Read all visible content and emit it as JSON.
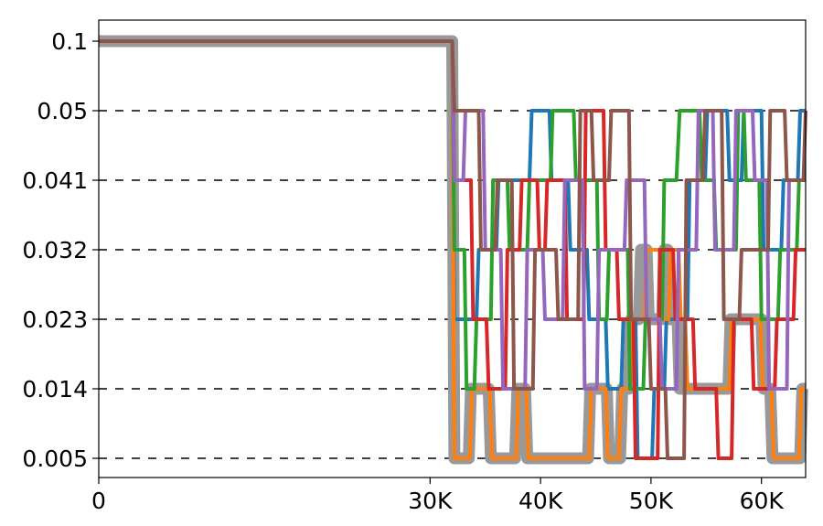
{
  "chart_data": {
    "type": "line",
    "title": "",
    "xlabel": "",
    "ylabel": "",
    "xlim": [
      0,
      64000
    ],
    "y_levels": [
      0.1,
      0.05,
      0.041,
      0.032,
      0.023,
      0.014,
      0.005
    ],
    "y_tick_labels": [
      "0.1",
      "0.05",
      "0.041",
      "0.032",
      "0.023",
      "0.014",
      "0.005"
    ],
    "x_ticks": [
      0,
      30000,
      40000,
      50000,
      60000
    ],
    "x_tick_labels": [
      "0",
      "30K",
      "40K",
      "50K",
      "60K"
    ],
    "grid": "dashed horizontal lines at levels below 0.1",
    "legend": "none",
    "series": [
      {
        "color": "#999999",
        "x": [
          0,
          32000,
          32200,
          32700,
          33500,
          33700,
          35300,
          35500,
          37700,
          37900,
          38600,
          38800,
          44300,
          44500,
          46000,
          46200,
          47200,
          47400,
          48000,
          48200,
          48900,
          49100,
          49600,
          49800,
          51000,
          51200,
          51500,
          51700,
          52400,
          52600,
          53000,
          53200,
          56100,
          56300,
          57000,
          57200,
          58600,
          58800,
          60000,
          60200,
          60800,
          61000,
          63500,
          63700,
          64000
        ],
        "y": [
          0.1,
          0.1,
          0.005,
          0.005,
          0.005,
          0.014,
          0.014,
          0.005,
          0.005,
          0.014,
          0.014,
          0.005,
          0.005,
          0.014,
          0.014,
          0.005,
          0.005,
          0.014,
          0.014,
          0.023,
          0.023,
          0.032,
          0.032,
          0.023,
          0.023,
          0.032,
          0.032,
          0.023,
          0.023,
          0.014,
          0.014,
          0.014,
          0.014,
          0.014,
          0.014,
          0.023,
          0.023,
          0.023,
          0.023,
          0.014,
          0.014,
          0.005,
          0.005,
          0.014,
          0.014
        ]
      },
      {
        "color": "#1f77b4",
        "x": [
          0,
          32000,
          32200,
          34200,
          34400,
          36000,
          36200,
          39000,
          39200,
          40800,
          41000,
          42500,
          42700,
          44200,
          44400,
          45900,
          46100,
          47300,
          47500,
          48600,
          48800,
          50100,
          50300,
          51200,
          51400,
          53300,
          53500,
          54900,
          55100,
          56900,
          57100,
          58200,
          58400,
          60000,
          60200,
          61800,
          62000,
          63300,
          63500,
          64000
        ],
        "y": [
          0.1,
          0.1,
          0.023,
          0.023,
          0.032,
          0.032,
          0.041,
          0.041,
          0.05,
          0.05,
          0.041,
          0.041,
          0.032,
          0.032,
          0.023,
          0.023,
          0.014,
          0.014,
          0.023,
          0.023,
          0.005,
          0.005,
          0.014,
          0.014,
          0.023,
          0.023,
          0.041,
          0.041,
          0.05,
          0.05,
          0.041,
          0.041,
          0.05,
          0.05,
          0.032,
          0.032,
          0.041,
          0.041,
          0.05,
          0.05
        ]
      },
      {
        "color": "#ff7f0e",
        "x": [
          0,
          32000,
          32200,
          33600,
          33800,
          35400,
          35600,
          37800,
          38000,
          38700,
          38900,
          44400,
          44600,
          45900,
          46100,
          47100,
          47300,
          48100,
          48300,
          49400,
          49600,
          50800,
          51000,
          51600,
          51800,
          52500,
          52700,
          53100,
          53300,
          56200,
          56400,
          57100,
          57300,
          58500,
          58700,
          59900,
          60100,
          60900,
          61100,
          63400,
          63600,
          64000
        ],
        "y": [
          0.1,
          0.1,
          0.005,
          0.005,
          0.014,
          0.014,
          0.005,
          0.005,
          0.014,
          0.014,
          0.005,
          0.005,
          0.014,
          0.014,
          0.005,
          0.005,
          0.014,
          0.014,
          0.023,
          0.023,
          0.032,
          0.032,
          0.023,
          0.023,
          0.032,
          0.032,
          0.023,
          0.023,
          0.014,
          0.014,
          0.014,
          0.014,
          0.023,
          0.023,
          0.023,
          0.023,
          0.014,
          0.014,
          0.005,
          0.005,
          0.014,
          0.014
        ]
      },
      {
        "color": "#2ca02c",
        "x": [
          0,
          32000,
          32200,
          33100,
          33300,
          34000,
          34200,
          35500,
          35700,
          37000,
          37200,
          38800,
          39000,
          40900,
          41100,
          43000,
          43200,
          45100,
          45300,
          46000,
          46200,
          47900,
          48100,
          49300,
          49500,
          51000,
          51200,
          52300,
          52600,
          54400,
          54600,
          55700,
          55900,
          57700,
          57900,
          58400,
          58600,
          59800,
          60000,
          61500,
          61700,
          63200,
          63400,
          64000
        ],
        "y": [
          0.1,
          0.1,
          0.032,
          0.032,
          0.014,
          0.014,
          0.023,
          0.023,
          0.041,
          0.041,
          0.032,
          0.032,
          0.041,
          0.041,
          0.05,
          0.05,
          0.041,
          0.041,
          0.023,
          0.023,
          0.032,
          0.032,
          0.014,
          0.014,
          0.023,
          0.023,
          0.041,
          0.041,
          0.05,
          0.05,
          0.041,
          0.041,
          0.032,
          0.032,
          0.05,
          0.05,
          0.041,
          0.041,
          0.023,
          0.023,
          0.032,
          0.032,
          0.041,
          0.041
        ]
      },
      {
        "color": "#d62728",
        "x": [
          0,
          32000,
          32200,
          33700,
          33900,
          35100,
          35300,
          36800,
          37000,
          38100,
          38300,
          39700,
          39900,
          40400,
          40600,
          42200,
          42400,
          43900,
          44100,
          45700,
          45900,
          46900,
          47100,
          48400,
          48600,
          50600,
          50800,
          52000,
          52200,
          53800,
          54000,
          55900,
          56100,
          57300,
          57500,
          59100,
          59300,
          61200,
          61400,
          62900,
          63100,
          64000
        ],
        "y": [
          0.1,
          0.1,
          0.041,
          0.041,
          0.023,
          0.023,
          0.014,
          0.014,
          0.032,
          0.032,
          0.041,
          0.041,
          0.032,
          0.032,
          0.041,
          0.041,
          0.023,
          0.023,
          0.05,
          0.05,
          0.032,
          0.032,
          0.023,
          0.023,
          0.005,
          0.005,
          0.032,
          0.032,
          0.023,
          0.023,
          0.014,
          0.014,
          0.005,
          0.005,
          0.023,
          0.023,
          0.014,
          0.014,
          0.023,
          0.023,
          0.032,
          0.032
        ]
      },
      {
        "color": "#9467bd",
        "x": [
          0,
          32000,
          32200,
          33000,
          33200,
          34800,
          35000,
          36400,
          36600,
          38600,
          38800,
          40200,
          40400,
          42000,
          42200,
          43800,
          44000,
          45100,
          45300,
          47600,
          47800,
          49400,
          49600,
          50800,
          51000,
          52300,
          52500,
          54100,
          54300,
          55600,
          55800,
          57500,
          57700,
          59200,
          59400,
          60500,
          60700,
          62300,
          62500,
          64000
        ],
        "y": [
          0.1,
          0.1,
          0.041,
          0.041,
          0.05,
          0.05,
          0.032,
          0.032,
          0.014,
          0.014,
          0.032,
          0.032,
          0.023,
          0.023,
          0.041,
          0.041,
          0.014,
          0.014,
          0.032,
          0.032,
          0.041,
          0.041,
          0.023,
          0.023,
          0.014,
          0.014,
          0.032,
          0.032,
          0.05,
          0.05,
          0.032,
          0.032,
          0.05,
          0.05,
          0.041,
          0.041,
          0.014,
          0.014,
          0.041,
          0.041
        ]
      },
      {
        "color": "#8c564b",
        "x": [
          0,
          32000,
          32200,
          34400,
          34600,
          35900,
          36100,
          37400,
          37600,
          39300,
          39500,
          41400,
          41600,
          43400,
          43600,
          44600,
          44800,
          46200,
          46400,
          48000,
          48200,
          49800,
          50000,
          51300,
          51500,
          53000,
          53200,
          54700,
          54900,
          56400,
          56600,
          58000,
          58200,
          60600,
          60800,
          62100,
          62300,
          63800,
          64000
        ],
        "y": [
          0.1,
          0.1,
          0.05,
          0.05,
          0.032,
          0.032,
          0.041,
          0.041,
          0.014,
          0.014,
          0.032,
          0.032,
          0.023,
          0.023,
          0.05,
          0.05,
          0.041,
          0.041,
          0.05,
          0.05,
          0.023,
          0.023,
          0.014,
          0.014,
          0.005,
          0.005,
          0.041,
          0.041,
          0.05,
          0.05,
          0.023,
          0.023,
          0.032,
          0.032,
          0.05,
          0.05,
          0.041,
          0.041,
          0.05
        ]
      }
    ]
  }
}
